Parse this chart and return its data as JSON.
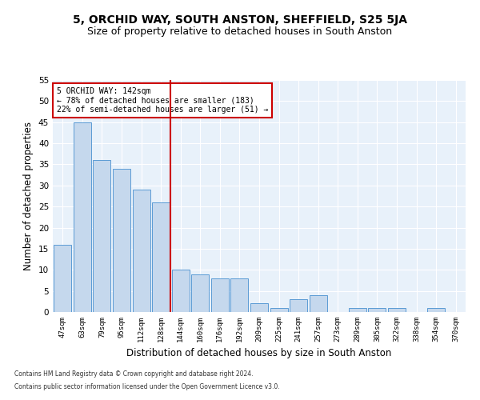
{
  "title1": "5, ORCHID WAY, SOUTH ANSTON, SHEFFIELD, S25 5JA",
  "title2": "Size of property relative to detached houses in South Anston",
  "xlabel": "Distribution of detached houses by size in South Anston",
  "ylabel": "Number of detached properties",
  "categories": [
    "47sqm",
    "63sqm",
    "79sqm",
    "95sqm",
    "112sqm",
    "128sqm",
    "144sqm",
    "160sqm",
    "176sqm",
    "192sqm",
    "209sqm",
    "225sqm",
    "241sqm",
    "257sqm",
    "273sqm",
    "289sqm",
    "305sqm",
    "322sqm",
    "338sqm",
    "354sqm",
    "370sqm"
  ],
  "values": [
    16,
    45,
    36,
    34,
    29,
    26,
    10,
    9,
    8,
    8,
    2,
    1,
    3,
    4,
    0,
    1,
    1,
    1,
    0,
    1,
    0
  ],
  "bar_color": "#c5d8ed",
  "bar_edge_color": "#5b9bd5",
  "annotation_text": "5 ORCHID WAY: 142sqm\n← 78% of detached houses are smaller (183)\n22% of semi-detached houses are larger (51) →",
  "annotation_box_color": "#ffffff",
  "annotation_box_edge": "#cc0000",
  "vline_color": "#cc0000",
  "footer1": "Contains HM Land Registry data © Crown copyright and database right 2024.",
  "footer2": "Contains public sector information licensed under the Open Government Licence v3.0.",
  "ylim": [
    0,
    55
  ],
  "yticks": [
    0,
    5,
    10,
    15,
    20,
    25,
    30,
    35,
    40,
    45,
    50,
    55
  ],
  "bg_color": "#e8f1fa",
  "fig_bg": "#ffffff",
  "title1_fontsize": 10,
  "title2_fontsize": 9,
  "xlabel_fontsize": 8.5,
  "ylabel_fontsize": 8.5
}
